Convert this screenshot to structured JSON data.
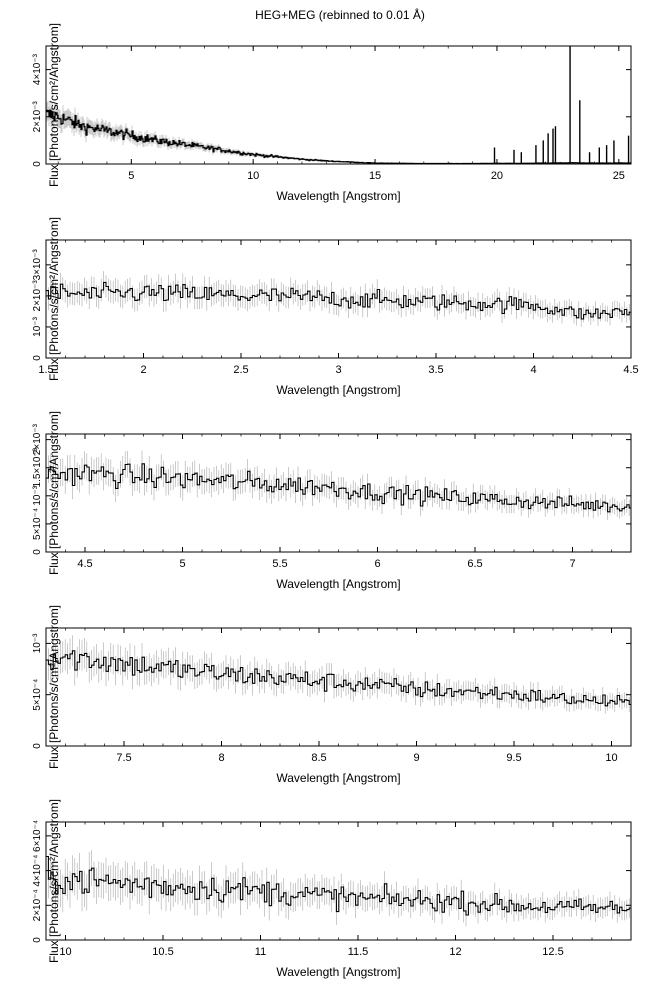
{
  "title": "HEG+MEG (rebinned to 0.01 Å)",
  "colors": {
    "line": "#000000",
    "errbar": "#a8a8a8",
    "axis": "#000000",
    "background": "#ffffff"
  },
  "chart_data": [
    {
      "type": "line",
      "xlabel": "Wavelength [Angstrom]",
      "ylabel": "Flux [Photons/s/cm²/Angstrom]",
      "xlim": [
        1.5,
        25.5
      ],
      "ylim": [
        0,
        0.005
      ],
      "xticks": [
        5,
        10,
        15,
        20,
        25
      ],
      "xtick_labels": [
        "5",
        "10",
        "15",
        "20",
        "25"
      ],
      "yticks": [
        0,
        0.002,
        0.004
      ],
      "ytick_labels": [
        "0",
        "2×10⁻³",
        "4×10⁻³"
      ],
      "grid": false,
      "series": [
        {
          "x": [
            1.5,
            2.0,
            2.5,
            3.0,
            4.0,
            5.0,
            6.0,
            7.0,
            8.0,
            9.0,
            10.0,
            11.0,
            12.0,
            13.0,
            14.0,
            15.0,
            16.0,
            17.0,
            18.0,
            19.0,
            20.0,
            21.0,
            22.0,
            23.0,
            24.0,
            25.0,
            25.5
          ],
          "y": [
            0.0021,
            0.002,
            0.0018,
            0.0016,
            0.0014,
            0.0012,
            0.001,
            0.00085,
            0.0007,
            0.00055,
            0.0004,
            0.0003,
            0.0002,
            0.00013,
            8e-05,
            4e-05,
            3e-05,
            2e-05,
            2e-05,
            2e-05,
            3e-05,
            3e-05,
            4e-05,
            5e-05,
            4e-05,
            4e-05,
            4e-05
          ],
          "spikes": [
            [
              19.9,
              0.0007
            ],
            [
              20.7,
              0.0006
            ],
            [
              21.0,
              0.0005
            ],
            [
              21.6,
              0.0008
            ],
            [
              21.9,
              0.001
            ],
            [
              22.1,
              0.0013
            ],
            [
              22.3,
              0.0015
            ],
            [
              22.4,
              0.0016
            ],
            [
              23.0,
              0.005
            ],
            [
              23.4,
              0.0027
            ],
            [
              23.8,
              0.0005
            ],
            [
              24.2,
              0.0007
            ],
            [
              24.5,
              0.0008
            ],
            [
              24.8,
              0.001
            ],
            [
              25.4,
              0.0012
            ]
          ]
        }
      ]
    },
    {
      "type": "line",
      "xlabel": "Wavelength [Angstrom]",
      "ylabel": "Flux [Photons/s/cm²/Angstrom]",
      "xlim": [
        1.5,
        4.5
      ],
      "ylim": [
        0,
        0.0038
      ],
      "xticks": [
        1.5,
        2,
        2.5,
        3,
        3.5,
        4,
        4.5
      ],
      "xtick_labels": [
        "1.5",
        "2",
        "2.5",
        "3",
        "3.5",
        "4",
        "4.5"
      ],
      "yticks": [
        0,
        0.001,
        0.002,
        0.003
      ],
      "ytick_labels": [
        "0",
        "10⁻³",
        "2×10⁻³",
        "3×10⁻³"
      ],
      "grid": false,
      "series": [
        {
          "x": [
            1.5,
            1.75,
            2.0,
            2.25,
            2.5,
            2.75,
            3.0,
            3.25,
            3.5,
            3.75,
            4.0,
            4.25,
            4.5
          ],
          "y": [
            0.0021,
            0.00205,
            0.0021,
            0.00205,
            0.002,
            0.00198,
            0.0019,
            0.00185,
            0.0018,
            0.00175,
            0.0017,
            0.0014,
            0.0015
          ]
        }
      ]
    },
    {
      "type": "line",
      "xlabel": "Wavelength [Angstrom]",
      "ylabel": "Flux [Photons/s/cm²/Angstrom]",
      "xlim": [
        4.3,
        7.3
      ],
      "ylim": [
        0,
        0.0021
      ],
      "xticks": [
        4.5,
        5,
        5.5,
        6,
        6.5,
        7
      ],
      "xtick_labels": [
        "4.5",
        "5",
        "5.5",
        "6",
        "6.5",
        "7"
      ],
      "yticks": [
        0,
        0.0005,
        0.001,
        0.0015,
        0.002
      ],
      "ytick_labels": [
        "0",
        "5×10⁻⁴",
        "10⁻³",
        "1.5×10⁻³",
        "2×10⁻³"
      ],
      "grid": false,
      "series": [
        {
          "x": [
            4.3,
            4.5,
            4.75,
            5.0,
            5.25,
            5.5,
            5.75,
            6.0,
            6.25,
            6.5,
            6.75,
            7.0,
            7.3
          ],
          "y": [
            0.0014,
            0.0014,
            0.00135,
            0.0013,
            0.00125,
            0.0012,
            0.00115,
            0.00105,
            0.001,
            0.00095,
            0.0009,
            0.00085,
            0.0008
          ]
        }
      ]
    },
    {
      "type": "line",
      "xlabel": "Wavelength [Angstrom]",
      "ylabel": "Flux [Photons/s/cm²/Angstrom]",
      "xlim": [
        7.1,
        10.1
      ],
      "ylim": [
        0,
        0.00115
      ],
      "xticks": [
        7.5,
        8,
        8.5,
        9,
        9.5,
        10
      ],
      "xtick_labels": [
        "7.5",
        "8",
        "8.5",
        "9",
        "9.5",
        "10"
      ],
      "yticks": [
        0,
        0.0005,
        0.001
      ],
      "ytick_labels": [
        "0",
        "5×10⁻⁴",
        "10⁻³"
      ],
      "grid": false,
      "series": [
        {
          "x": [
            7.1,
            7.3,
            7.5,
            7.75,
            8.0,
            8.25,
            8.5,
            8.75,
            9.0,
            9.25,
            9.5,
            9.75,
            10.1
          ],
          "y": [
            0.00088,
            0.00085,
            0.0008,
            0.00075,
            0.0007,
            0.00067,
            0.00063,
            0.0006,
            0.00055,
            0.00053,
            0.0005,
            0.00046,
            0.00042
          ]
        }
      ]
    },
    {
      "type": "line",
      "xlabel": "Wavelength [Angstrom]",
      "ylabel": "Flux [Photons/s/cm²/Angstrom]",
      "xlim": [
        9.9,
        12.9
      ],
      "ylim": [
        0,
        0.00068
      ],
      "xticks": [
        10,
        10.5,
        11,
        11.5,
        12,
        12.5
      ],
      "xtick_labels": [
        "10",
        "10.5",
        "11",
        "11.5",
        "12",
        "12.5"
      ],
      "yticks": [
        0,
        0.0002,
        0.0004,
        0.0006
      ],
      "ytick_labels": [
        "0",
        "2×10⁻⁴",
        "4×10⁻⁴",
        "6×10⁻⁴"
      ],
      "grid": false,
      "series": [
        {
          "x": [
            9.9,
            10.0,
            10.25,
            10.5,
            10.75,
            11.0,
            11.25,
            11.5,
            11.75,
            12.0,
            12.25,
            12.5,
            12.9
          ],
          "y": [
            0.00036,
            0.00035,
            0.00033,
            0.00031,
            0.0003,
            0.00028,
            0.00026,
            0.00024,
            0.00023,
            0.00022,
            0.0002,
            0.00019,
            0.00018
          ]
        }
      ]
    }
  ]
}
